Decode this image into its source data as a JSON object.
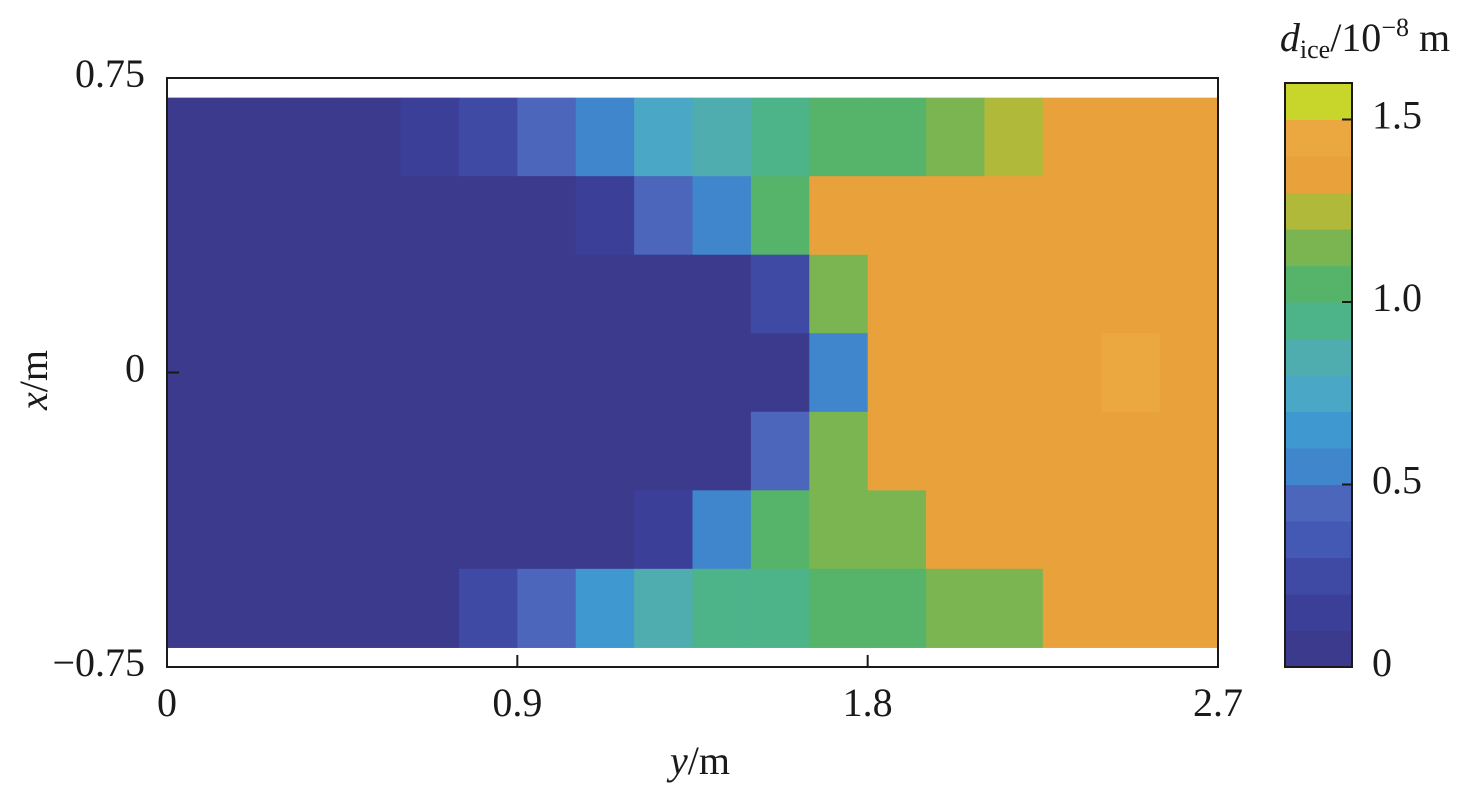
{
  "chart_data": {
    "type": "heatmap",
    "x_label": [
      "y",
      "/m"
    ],
    "y_label": [
      "x",
      "/m"
    ],
    "xlim": [
      0,
      2.7
    ],
    "xticks": [
      0,
      0.9,
      1.8,
      2.7
    ],
    "ylim": [
      -0.75,
      0.75
    ],
    "yticks": [
      {
        "value": 0.75,
        "label": "0.75"
      },
      0,
      {
        "value": -0.75,
        "label": "−0.75"
      }
    ],
    "x_edges": [
      0,
      0.15,
      0.3,
      0.45,
      0.6,
      0.75,
      0.9,
      1.05,
      1.2,
      1.35,
      1.5,
      1.65,
      1.8,
      1.95,
      2.1,
      2.25,
      2.4,
      2.55,
      2.7
    ],
    "y_edges": [
      0.7,
      0.5,
      0.3,
      0.1,
      -0.1,
      -0.3,
      -0.5,
      -0.7
    ],
    "values": [
      [
        0.05,
        0.05,
        0.05,
        0.05,
        0.15,
        0.3,
        0.45,
        0.6,
        0.75,
        0.85,
        0.95,
        1.0,
        1.05,
        1.15,
        1.25,
        1.3,
        1.35,
        1.35
      ],
      [
        0.05,
        0.05,
        0.05,
        0.05,
        0.05,
        0.05,
        0.05,
        0.15,
        0.4,
        0.6,
        1.05,
        1.35,
        1.35,
        1.3,
        1.35,
        1.4,
        1.35,
        1.35
      ],
      [
        0.05,
        0.05,
        0.05,
        0.05,
        0.05,
        0.05,
        0.05,
        0.05,
        0.05,
        0.05,
        0.3,
        1.2,
        1.35,
        1.4,
        1.35,
        1.4,
        1.35,
        1.4
      ],
      [
        0.05,
        0.05,
        0.05,
        0.05,
        0.05,
        0.05,
        0.05,
        0.05,
        0.05,
        0.05,
        0.05,
        0.6,
        1.3,
        1.35,
        1.4,
        1.35,
        1.45,
        1.4
      ],
      [
        0.05,
        0.05,
        0.05,
        0.05,
        0.05,
        0.05,
        0.05,
        0.05,
        0.05,
        0.05,
        0.4,
        1.2,
        1.3,
        1.35,
        1.4,
        1.35,
        1.4,
        1.4
      ],
      [
        0.05,
        0.05,
        0.05,
        0.05,
        0.05,
        0.05,
        0.05,
        0.05,
        0.15,
        0.5,
        1.0,
        1.15,
        1.2,
        1.3,
        1.35,
        1.4,
        1.35,
        1.35
      ],
      [
        0.05,
        0.05,
        0.05,
        0.05,
        0.05,
        0.2,
        0.45,
        0.65,
        0.8,
        0.9,
        0.95,
        1.0,
        1.05,
        1.15,
        1.2,
        1.3,
        1.35,
        1.35
      ]
    ],
    "colorbar": {
      "title": [
        "d",
        "ice",
        "/10",
        "−8",
        " m"
      ],
      "lim": [
        0,
        1.6
      ],
      "ticks": [
        0,
        0.5,
        {
          "value": 1,
          "label": "1.0"
        },
        1.5
      ],
      "colors": [
        "#3c3a8d",
        "#3c3f98",
        "#3f4aa5",
        "#4459b3",
        "#4b66bb",
        "#3f86cc",
        "#3f98cf",
        "#4aa7c6",
        "#4fadaf",
        "#4db48a",
        "#55b46a",
        "#7ab552",
        "#b0b93a",
        "#e9a23b",
        "#eca840",
        "#c8d62c"
      ]
    }
  }
}
